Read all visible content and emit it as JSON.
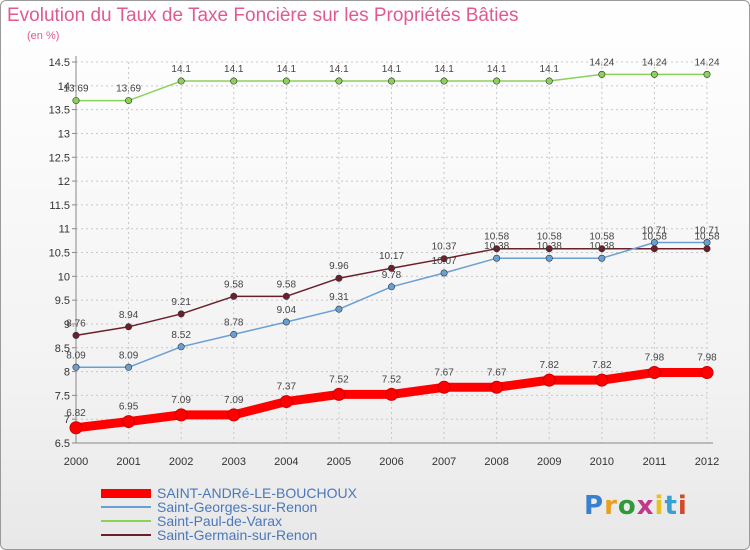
{
  "title": "Evolution du Taux de Taxe Foncière sur les Propriétés Bâties",
  "subtitle": "(en %)",
  "logo_text": "Proxiti",
  "chart_data": {
    "type": "line",
    "x": [
      "2000",
      "2001",
      "2002",
      "2003",
      "2004",
      "2005",
      "2006",
      "2007",
      "2008",
      "2009",
      "2010",
      "2011",
      "2012"
    ],
    "ylim": [
      6.5,
      14.5
    ],
    "yticks": [
      "6.5",
      "7",
      "7.5",
      "8",
      "8.5",
      "9",
      "9.5",
      "10",
      "10.5",
      "11",
      "11.5",
      "12",
      "12.5",
      "13",
      "13.5",
      "14",
      "14.5"
    ],
    "grid": true,
    "legend_position": "bottom-left",
    "series": [
      {
        "name": "SAINT-ANDRé-LE-BOUCHOUX",
        "color": "#ff0000",
        "values": [
          6.82,
          6.95,
          7.09,
          7.09,
          7.37,
          7.52,
          7.52,
          7.67,
          7.67,
          7.82,
          7.82,
          7.98,
          7.98
        ],
        "labels": [
          "6.82",
          "6.95",
          "7.09",
          "7.09",
          "7.37",
          "7.52",
          "7.52",
          "7.67",
          "7.67",
          "7.82",
          "7.82",
          "7.98",
          "7.98"
        ]
      },
      {
        "name": "Saint-Georges-sur-Renon",
        "color": "#6a9fd4",
        "values": [
          8.09,
          8.09,
          8.52,
          8.78,
          9.04,
          9.31,
          9.78,
          10.07,
          10.38,
          10.38,
          10.38,
          10.71,
          10.71
        ],
        "labels": [
          "8.09",
          "8.09",
          "8.52",
          "8.78",
          "9.04",
          "9.31",
          "9.78",
          "10.07",
          "10.38",
          "10.38",
          "10.38",
          "10.71",
          "10.71"
        ]
      },
      {
        "name": "Saint-Paul-de-Varax",
        "color": "#8cd25a",
        "values": [
          13.69,
          13.69,
          14.1,
          14.1,
          14.1,
          14.1,
          14.1,
          14.1,
          14.1,
          14.1,
          14.24,
          14.24,
          14.24
        ],
        "labels": [
          "13.69",
          "13.69",
          "14.1",
          "14.1",
          "14.1",
          "14.1",
          "14.1",
          "14.1",
          "14.1",
          "14.1",
          "14.24",
          "14.24",
          "14.24"
        ]
      },
      {
        "name": "Saint-Germain-sur-Renon",
        "color": "#6b1f2a",
        "values": [
          8.76,
          8.94,
          9.21,
          9.58,
          9.58,
          9.96,
          10.17,
          10.37,
          10.58,
          10.58,
          10.58,
          10.58,
          10.58
        ],
        "labels": [
          "8.76",
          "8.94",
          "9.21",
          "9.58",
          "9.58",
          "9.96",
          "10.17",
          "10.37",
          "10.58",
          "10.58",
          "10.58",
          "10.58",
          "10.58"
        ]
      }
    ]
  }
}
